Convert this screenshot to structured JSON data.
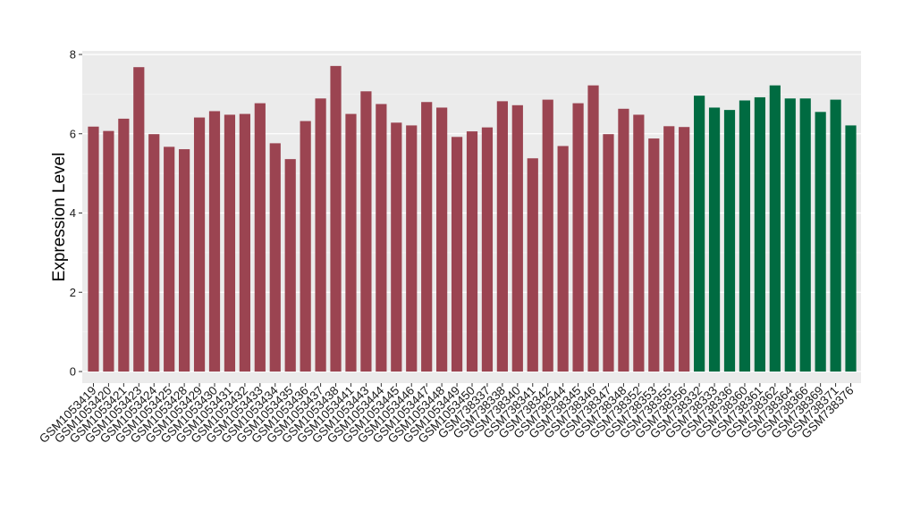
{
  "chart_data": {
    "type": "bar",
    "title": "",
    "xlabel": "",
    "ylabel": "Expression Level",
    "ylim": [
      0,
      8
    ],
    "yticks": [
      0,
      2,
      4,
      6,
      8
    ],
    "grid": true,
    "panel_color": "#ebebeb",
    "categories": [
      "GSM1053419",
      "GSM1053420",
      "GSM1053421",
      "GSM1053423",
      "GSM1053424",
      "GSM1053425",
      "GSM1053428",
      "GSM1053429",
      "GSM1053430",
      "GSM1053431",
      "GSM1053432",
      "GSM1053433",
      "GSM1053434",
      "GSM1053435",
      "GSM1053436",
      "GSM1053437",
      "GSM1053438",
      "GSM1053441",
      "GSM1053443",
      "GSM1053444",
      "GSM1053445",
      "GSM1053446",
      "GSM1053447",
      "GSM1053448",
      "GSM1053449",
      "GSM1053450",
      "GSM738337",
      "GSM738338",
      "GSM738340",
      "GSM738341",
      "GSM738342",
      "GSM738344",
      "GSM738345",
      "GSM738346",
      "GSM738347",
      "GSM738348",
      "GSM738352",
      "GSM738353",
      "GSM738355",
      "GSM738356",
      "GSM738332",
      "GSM738333",
      "GSM738336",
      "GSM738360",
      "GSM738361",
      "GSM738362",
      "GSM738364",
      "GSM738366",
      "GSM738369",
      "GSM738371",
      "GSM738376"
    ],
    "values": [
      6.18,
      6.07,
      6.38,
      7.68,
      5.99,
      5.67,
      5.61,
      6.41,
      6.57,
      6.48,
      6.5,
      6.77,
      5.76,
      5.36,
      6.32,
      6.89,
      7.71,
      6.5,
      7.07,
      6.75,
      6.28,
      6.21,
      6.8,
      6.66,
      5.92,
      6.06,
      6.16,
      6.82,
      6.72,
      5.38,
      6.86,
      5.69,
      6.77,
      7.22,
      5.99,
      6.63,
      6.48,
      5.88,
      6.19,
      6.17,
      6.96,
      6.66,
      6.6,
      6.84,
      6.92,
      7.22,
      6.89,
      6.89,
      6.55,
      6.86,
      6.21
    ],
    "bar_colors": {
      "group1": "#9b4451",
      "group2": "#006b41"
    },
    "group_sizes": [
      40,
      11
    ]
  }
}
